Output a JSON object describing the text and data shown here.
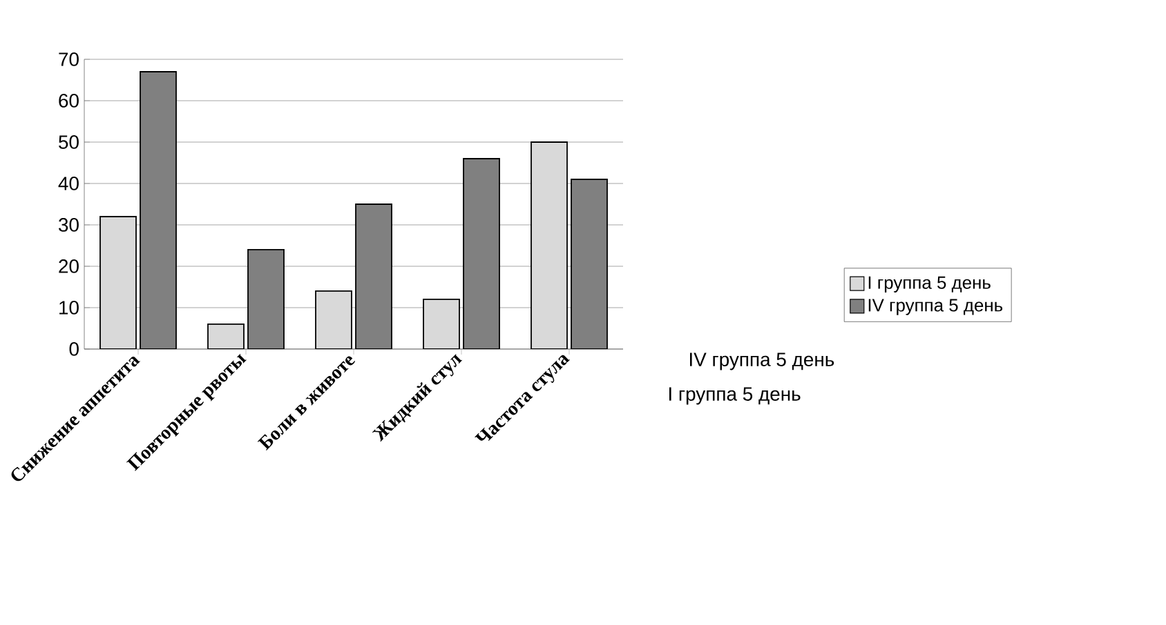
{
  "chart_data": {
    "type": "bar",
    "categories": [
      "Снижение аппетита",
      "Повторные рвоты",
      "Боли в животе",
      "Жидкий стул",
      "Частота стула"
    ],
    "series": [
      {
        "name": "I группа 5 день",
        "color": "#d9d9d9",
        "values": [
          32,
          6,
          14,
          12,
          50
        ]
      },
      {
        "name": "IV группа 5 день",
        "color": "#808080",
        "values": [
          67,
          24,
          35,
          46,
          41
        ]
      }
    ],
    "ylim": [
      0,
      70
    ],
    "yticks": [
      0,
      10,
      20,
      30,
      40,
      50,
      60,
      70
    ],
    "grid": "y",
    "legend": "right"
  }
}
